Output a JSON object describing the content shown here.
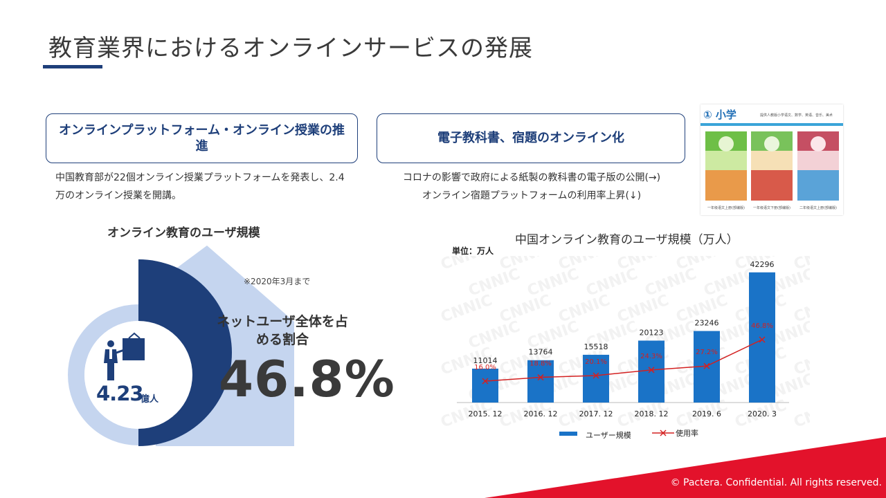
{
  "page": {
    "title": "教育業界におけるオンラインサービスの発展",
    "copyright": "© Pactera.  Confidential.  All rights reserved."
  },
  "boxes": [
    {
      "heading": "オンラインプラットフォーム・オンライン授業の推進",
      "desc": "中国教育部が22個オンライン授業プラットフォームを発表し、2.4万のオンライン授業を開講。"
    },
    {
      "heading": "電子教科書、宿題のオンライン化",
      "desc_lines": [
        "コロナの影響で政府による紙製の教科書の電子版の公開(→)",
        "オンライン宿題プラットフォームの利用率上昇(↓)"
      ]
    }
  ],
  "textbook_image": {
    "header": "① 小学",
    "subtitle": "提供人教版小学语文、数学、英语、音乐、美术",
    "captions": [
      "一年级语文上册(部编版)",
      "一年级语文下册(部编版)",
      "二年级语文上册(部编版)"
    ]
  },
  "user_scale": {
    "heading": "オンライン教育のユーザ規模",
    "note": "※2020年3月まで",
    "users_value": "4.23",
    "users_unit": "億人",
    "ratio_label": "ネットユーザ全体を占める割合",
    "ratio_value": "46.8%",
    "ratio": 0.468,
    "colors": {
      "dark": "#1e3f7a",
      "light": "#c5d5ef"
    }
  },
  "chart_data": {
    "type": "bar",
    "title": "中国オンライン教育のユーザ規模（万人）",
    "unit_label": "単位：万人",
    "categories": [
      "2015. 12",
      "2016. 12",
      "2017. 12",
      "2018. 12",
      "2019. 6",
      "2020. 3"
    ],
    "series": [
      {
        "name": "ユーザー規模",
        "type": "bar",
        "color": "#1a73c7",
        "values": [
          11014,
          13764,
          15518,
          20123,
          23246,
          42296
        ],
        "labels": [
          "11014",
          "13764",
          "15518",
          "20123",
          "23246",
          "42296"
        ]
      },
      {
        "name": "使用率",
        "type": "line",
        "color": "#d32020",
        "values": [
          16.0,
          18.8,
          20.1,
          24.3,
          27.2,
          46.8
        ],
        "labels": [
          "16.0%",
          "18.8%",
          "20.1%",
          "24.3%",
          "27.2%",
          "46.8%"
        ]
      }
    ],
    "watermark": "CNNIC",
    "legend_position": "bottom"
  }
}
